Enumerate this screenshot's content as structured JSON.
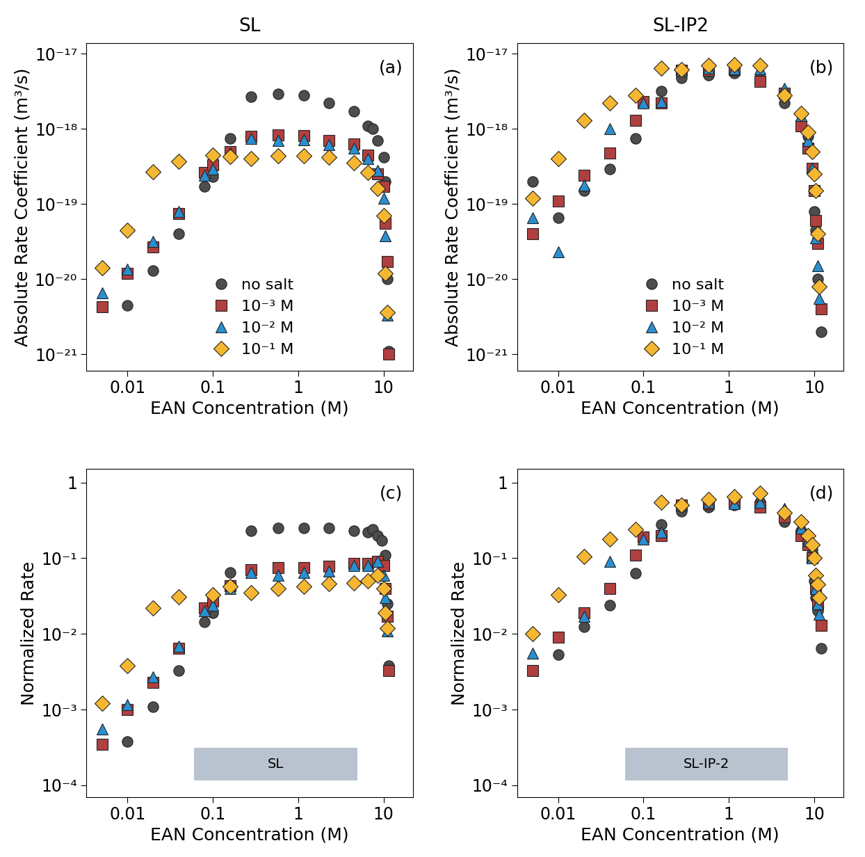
{
  "chart_data": [
    {
      "type": "scatter",
      "title": "SL",
      "x_label": "EAN Concentration (M)",
      "y_label": "Absolute Rate Coefficient (m³/s)",
      "annotations": [
        "(a)"
      ],
      "log": true,
      "legend": "lower center",
      "xlim": [
        0.0033,
        22
      ],
      "xticks": [
        0.01,
        0.1,
        1,
        10
      ],
      "ylim": [
        6e-22,
        1.4e-17
      ],
      "yticks": [
        {
          "value": 1e-21,
          "label": "10⁻²¹"
        },
        {
          "value": 1e-20,
          "label": "10⁻²⁰"
        },
        {
          "value": 1e-19,
          "label": "10⁻¹⁹"
        },
        {
          "value": 1e-18,
          "label": "10⁻¹⁸"
        },
        {
          "value": 1e-17,
          "label": "10⁻¹⁷"
        }
      ],
      "series": [
        {
          "name": "no salt",
          "color": "#4d4d4d",
          "marker": "circle",
          "x": [
            0.01,
            0.02,
            0.04,
            0.08,
            0.1,
            0.16,
            0.28,
            0.58,
            1.16,
            2.3,
            4.5,
            6.5,
            7.5,
            8.5,
            10,
            10.5,
            11,
            11.5
          ],
          "values": [
            4.5e-21,
            1.3e-20,
            4e-20,
            1.7e-19,
            2.3e-19,
            7.5e-19,
            2.7e-18,
            2.9e-18,
            2.8e-18,
            2.2e-18,
            1.7e-18,
            1.1e-18,
            1e-18,
            7e-19,
            4.2e-19,
            2e-19,
            1e-20,
            1.1e-21
          ]
        },
        {
          "name": "10⁻³ M",
          "color": "#b0403f",
          "marker": "square",
          "x": [
            0.005,
            0.01,
            0.02,
            0.04,
            0.08,
            0.1,
            0.16,
            0.28,
            0.58,
            1.16,
            2.3,
            4.5,
            6.5,
            8.5,
            10,
            10.5,
            11,
            11.5
          ],
          "values": [
            4.3e-21,
            1.2e-20,
            2.7e-20,
            7.5e-20,
            2.6e-19,
            3.3e-19,
            5e-19,
            8e-19,
            8.3e-19,
            8.2e-19,
            7e-19,
            6.3e-19,
            4.5e-19,
            2.5e-19,
            1.7e-19,
            5.5e-20,
            1.7e-20,
            1e-21
          ]
        },
        {
          "name": "10⁻² M",
          "color": "#2a8fd0",
          "marker": "triangle",
          "x": [
            0.005,
            0.01,
            0.02,
            0.04,
            0.08,
            0.1,
            0.16,
            0.28,
            0.58,
            1.16,
            2.3,
            4.5,
            6.5,
            8.5,
            10,
            10.5,
            11
          ],
          "values": [
            6.5e-21,
            1.35e-20,
            3.2e-20,
            8e-20,
            2.4e-19,
            2.9e-19,
            4.8e-19,
            7.5e-19,
            7e-19,
            7.2e-19,
            6.2e-19,
            5.5e-19,
            4e-19,
            2.8e-19,
            1.2e-19,
            3.8e-20,
            3.3e-21
          ]
        },
        {
          "name": "10⁻¹ M",
          "color": "#f5b731",
          "marker": "diamond",
          "x": [
            0.005,
            0.01,
            0.02,
            0.04,
            0.1,
            0.16,
            0.28,
            0.58,
            1.16,
            2.3,
            4.5,
            6.5,
            8.5,
            10,
            10.5,
            11
          ],
          "values": [
            1.4e-20,
            4.5e-20,
            2.7e-19,
            3.7e-19,
            4.5e-19,
            4.3e-19,
            4e-19,
            4.4e-19,
            4.4e-19,
            4.2e-19,
            3.5e-19,
            2.6e-19,
            1.6e-19,
            7e-20,
            1.2e-20,
            3.6e-21
          ]
        }
      ]
    },
    {
      "type": "scatter",
      "title": "SL-IP2",
      "x_label": "EAN Concentration (M)",
      "y_label": "Absolute Rate Coefficient (m³/s)",
      "annotations": [
        "(b)"
      ],
      "log": true,
      "legend": "lower center",
      "xlim": [
        0.0033,
        22
      ],
      "xticks": [
        0.01,
        0.1,
        1,
        10
      ],
      "ylim": [
        6e-22,
        1.4e-17
      ],
      "yticks": [
        {
          "value": 1e-21,
          "label": "10⁻²¹"
        },
        {
          "value": 1e-20,
          "label": "10⁻²⁰"
        },
        {
          "value": 1e-19,
          "label": "10⁻¹⁹"
        },
        {
          "value": 1e-18,
          "label": "10⁻¹⁸"
        },
        {
          "value": 1e-17,
          "label": "10⁻¹⁷"
        }
      ],
      "series": [
        {
          "name": "no salt",
          "color": "#4d4d4d",
          "marker": "circle",
          "x": [
            0.005,
            0.01,
            0.02,
            0.04,
            0.08,
            0.16,
            0.28,
            0.58,
            1.16,
            2.3,
            4.5,
            7,
            8.5,
            9.5,
            10,
            10.5,
            11,
            12
          ],
          "values": [
            2e-19,
            6.5e-20,
            1.5e-19,
            2.9e-19,
            7.5e-19,
            3.2e-18,
            4.8e-18,
            5.2e-18,
            5.5e-18,
            4.8e-18,
            2.2e-18,
            1.2e-18,
            8e-19,
            3e-19,
            8e-20,
            4.5e-20,
            1e-20,
            2e-21
          ]
        },
        {
          "name": "10⁻³ M",
          "color": "#b0403f",
          "marker": "square",
          "x": [
            0.005,
            0.01,
            0.02,
            0.04,
            0.08,
            0.1,
            0.16,
            0.28,
            0.58,
            1.16,
            2.3,
            4.5,
            7,
            8.5,
            9.5,
            10,
            10.5,
            11,
            12
          ],
          "values": [
            4e-20,
            1.1e-19,
            2.4e-19,
            4.8e-19,
            1.3e-18,
            2.3e-18,
            2.2e-18,
            6e-18,
            6e-18,
            6.2e-18,
            4.3e-18,
            3e-18,
            1.1e-18,
            5.5e-19,
            3e-19,
            1.5e-19,
            6e-20,
            3e-20,
            4e-21
          ]
        },
        {
          "name": "10⁻² M",
          "color": "#2a8fd0",
          "marker": "triangle",
          "x": [
            0.005,
            0.01,
            0.02,
            0.04,
            0.1,
            0.16,
            0.28,
            0.58,
            1.16,
            2.3,
            4.5,
            7,
            8.5,
            9.5,
            10.5,
            11,
            11.5
          ],
          "values": [
            6.5e-20,
            2.3e-20,
            1.8e-19,
            1e-18,
            2.2e-18,
            2.3e-18,
            6e-18,
            6.5e-18,
            6.3e-18,
            6.3e-18,
            3.5e-18,
            1.5e-18,
            7e-19,
            3e-19,
            3.5e-20,
            1.5e-20,
            5.5e-21
          ]
        },
        {
          "name": "10⁻¹ M",
          "color": "#f5b731",
          "marker": "diamond",
          "x": [
            0.005,
            0.01,
            0.02,
            0.04,
            0.08,
            0.16,
            0.28,
            0.58,
            1.16,
            2.3,
            4.5,
            7,
            8.5,
            9.5,
            10,
            10.5,
            11,
            11.5
          ],
          "values": [
            1.2e-19,
            4e-19,
            1.3e-18,
            2.2e-18,
            2.8e-18,
            6.5e-18,
            6.2e-18,
            7e-18,
            7.2e-18,
            7e-18,
            2.8e-18,
            1.6e-18,
            9e-19,
            5e-19,
            2.5e-19,
            1.5e-19,
            4e-20,
            8e-21
          ]
        }
      ]
    },
    {
      "type": "scatter",
      "x_label": "EAN Concentration (M)",
      "y_label": "Normalized Rate",
      "annotations": [
        "(c)",
        "SL"
      ],
      "log": true,
      "xlim": [
        0.0033,
        22
      ],
      "xticks": [
        0.01,
        0.1,
        1,
        10
      ],
      "ylim": [
        7e-05,
        1.5
      ],
      "yticks": [
        {
          "value": 0.0001,
          "label": "10⁻⁴"
        },
        {
          "value": 0.001,
          "label": "10⁻³"
        },
        {
          "value": 0.01,
          "label": "10⁻²"
        },
        {
          "value": 0.1,
          "label": "10⁻¹"
        },
        1
      ],
      "series": [
        {
          "color": "#4d4d4d",
          "marker": "circle",
          "x": [
            0.01,
            0.02,
            0.04,
            0.08,
            0.1,
            0.16,
            0.28,
            0.58,
            1.16,
            2.3,
            4.5,
            6.5,
            7.5,
            8.5,
            9.5,
            10.5,
            11,
            11.5
          ],
          "values": [
            0.00038,
            0.0011,
            0.0033,
            0.0145,
            0.019,
            0.065,
            0.23,
            0.25,
            0.25,
            0.25,
            0.23,
            0.22,
            0.24,
            0.2,
            0.17,
            0.11,
            0.025,
            0.0038
          ]
        },
        {
          "color": "#b0403f",
          "marker": "square",
          "x": [
            0.005,
            0.01,
            0.02,
            0.04,
            0.08,
            0.1,
            0.16,
            0.28,
            0.58,
            1.16,
            2.3,
            4.5,
            6.5,
            8.5,
            10,
            10.5,
            11,
            11.5
          ],
          "values": [
            0.00035,
            0.001,
            0.0023,
            0.0065,
            0.022,
            0.027,
            0.043,
            0.07,
            0.075,
            0.075,
            0.078,
            0.085,
            0.085,
            0.09,
            0.08,
            0.04,
            0.017,
            0.0033
          ]
        },
        {
          "color": "#2a8fd0",
          "marker": "triangle",
          "x": [
            0.005,
            0.01,
            0.02,
            0.04,
            0.08,
            0.1,
            0.16,
            0.28,
            0.58,
            1.16,
            2.3,
            4.5,
            6.5,
            8.5,
            10,
            10.5,
            11
          ],
          "values": [
            0.00055,
            0.00115,
            0.0027,
            0.0068,
            0.02,
            0.024,
            0.04,
            0.065,
            0.06,
            0.065,
            0.068,
            0.08,
            0.08,
            0.09,
            0.06,
            0.03,
            0.011
          ]
        },
        {
          "color": "#f5b731",
          "marker": "diamond",
          "x": [
            0.005,
            0.01,
            0.02,
            0.04,
            0.1,
            0.16,
            0.28,
            0.58,
            1.16,
            2.3,
            4.5,
            6.5,
            8.5,
            10,
            10.5,
            11
          ],
          "values": [
            0.0012,
            0.0038,
            0.022,
            0.031,
            0.033,
            0.042,
            0.035,
            0.04,
            0.042,
            0.046,
            0.047,
            0.05,
            0.06,
            0.04,
            0.019,
            0.012
          ]
        }
      ]
    },
    {
      "type": "scatter",
      "x_label": "EAN Concentration (M)",
      "y_label": "Normalized Rate",
      "annotations": [
        "(d)",
        "SL-IP-2"
      ],
      "log": true,
      "xlim": [
        0.0033,
        22
      ],
      "xticks": [
        0.01,
        0.1,
        1,
        10
      ],
      "ylim": [
        7e-05,
        1.5
      ],
      "yticks": [
        {
          "value": 0.0001,
          "label": "10⁻⁴"
        },
        {
          "value": 0.001,
          "label": "10⁻³"
        },
        {
          "value": 0.01,
          "label": "10⁻²"
        },
        {
          "value": 0.1,
          "label": "10⁻¹"
        },
        1
      ],
      "series": [
        {
          "color": "#4d4d4d",
          "marker": "circle",
          "x": [
            0.01,
            0.02,
            0.04,
            0.08,
            0.16,
            0.28,
            0.58,
            1.16,
            2.3,
            4.5,
            7,
            8.5,
            9.5,
            10,
            10.5,
            11,
            12
          ],
          "values": [
            0.0053,
            0.0125,
            0.024,
            0.063,
            0.28,
            0.42,
            0.47,
            0.5,
            0.55,
            0.3,
            0.23,
            0.2,
            0.13,
            0.05,
            0.03,
            0.02,
            0.0065
          ]
        },
        {
          "color": "#b0403f",
          "marker": "square",
          "x": [
            0.005,
            0.01,
            0.02,
            0.04,
            0.08,
            0.1,
            0.16,
            0.28,
            0.58,
            1.16,
            2.3,
            4.5,
            7,
            8.5,
            9.5,
            10.5,
            11,
            12
          ],
          "values": [
            0.0033,
            0.009,
            0.019,
            0.04,
            0.11,
            0.19,
            0.2,
            0.5,
            0.52,
            0.55,
            0.47,
            0.35,
            0.2,
            0.15,
            0.1,
            0.04,
            0.025,
            0.013
          ]
        },
        {
          "color": "#2a8fd0",
          "marker": "triangle",
          "x": [
            0.005,
            0.02,
            0.04,
            0.1,
            0.16,
            0.28,
            0.58,
            1.16,
            2.3,
            4.5,
            7,
            8.5,
            9.5,
            10.5,
            11,
            11.5
          ],
          "values": [
            0.0055,
            0.017,
            0.09,
            0.18,
            0.22,
            0.5,
            0.55,
            0.52,
            0.55,
            0.45,
            0.25,
            0.17,
            0.1,
            0.04,
            0.025,
            0.018
          ]
        },
        {
          "color": "#f5b731",
          "marker": "diamond",
          "x": [
            0.005,
            0.01,
            0.02,
            0.04,
            0.08,
            0.16,
            0.28,
            0.58,
            1.16,
            2.3,
            4.5,
            7,
            8.5,
            9.5,
            10,
            10.5,
            11,
            11.5
          ],
          "values": [
            0.01,
            0.033,
            0.105,
            0.18,
            0.24,
            0.55,
            0.5,
            0.6,
            0.65,
            0.72,
            0.4,
            0.3,
            0.2,
            0.15,
            0.1,
            0.06,
            0.045,
            0.03
          ]
        }
      ]
    }
  ]
}
